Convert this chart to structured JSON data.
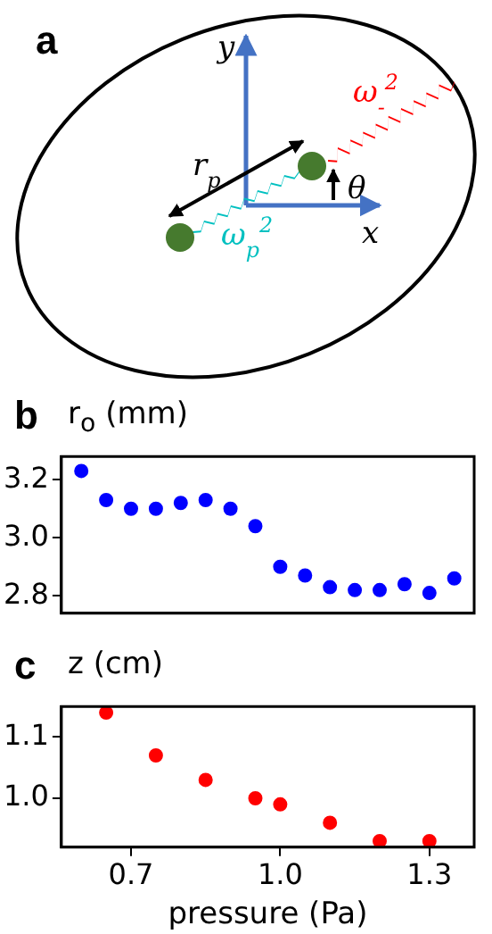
{
  "chart_data": [
    {
      "type": "other",
      "title": "a",
      "annotations": [
        "y",
        "x",
        "r$_{p}$",
        "θ",
        "ω$_{p}$$^{2}$",
        "ω$_{-}$$^{2}$"
      ]
    },
    {
      "type": "scatter",
      "title": "b",
      "ylabel": "r$_{o}$ (mm)",
      "x": [
        0.6,
        0.65,
        0.7,
        0.75,
        0.8,
        0.85,
        0.9,
        0.95,
        1.0,
        1.05,
        1.1,
        1.15,
        1.2,
        1.25,
        1.3,
        1.35
      ],
      "values": [
        3.23,
        3.13,
        3.1,
        3.1,
        3.12,
        3.13,
        3.1,
        3.04,
        2.9,
        2.87,
        2.83,
        2.82,
        2.82,
        2.84,
        2.81,
        2.86
      ],
      "color": "#0000ff",
      "marker": "circle",
      "grid": false,
      "tick_labels": "y",
      "xlim": [
        0.56,
        1.39
      ],
      "xticks": [
        {
          "value": 0.7,
          "label": null
        },
        {
          "value": 1,
          "label": null
        },
        {
          "value": 1.3,
          "label": null
        }
      ],
      "ylim": [
        2.74,
        3.28
      ],
      "yticks": [
        3.2,
        {
          "value": 3,
          "label": "3.0"
        },
        2.8
      ]
    },
    {
      "type": "scatter",
      "title": "c",
      "ylabel": "z (cm)",
      "xlabel": "pressure (Pa)",
      "x": [
        0.65,
        0.75,
        0.85,
        0.95,
        1.0,
        1.1,
        1.2,
        1.3
      ],
      "values": [
        1.14,
        1.07,
        1.03,
        1.0,
        0.99,
        0.96,
        0.93,
        0.93
      ],
      "color": "#ff0000",
      "marker": "circle",
      "grid": false,
      "xlim": [
        0.56,
        1.39
      ],
      "xticks": [
        0.7,
        {
          "value": 1,
          "label": "1.0"
        },
        1.3
      ],
      "ylim": [
        0.92,
        1.15
      ],
      "yticks": [
        1.1,
        {
          "value": 1,
          "label": "1.0"
        }
      ]
    }
  ]
}
